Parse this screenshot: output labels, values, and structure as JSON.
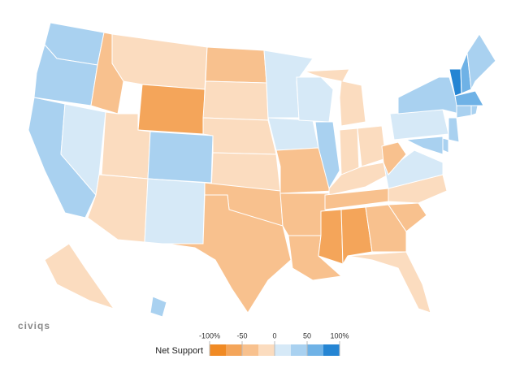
{
  "chart_data": {
    "type": "choropleth",
    "values": [
      40,
      40,
      40,
      15,
      -30,
      -15,
      -60,
      -15,
      -15,
      35,
      15,
      -40,
      -20,
      -20,
      -20,
      -30,
      -40,
      15,
      15,
      -30,
      -40,
      -45,
      15,
      30,
      -15,
      -20,
      -15,
      -20,
      -30,
      -65,
      -65,
      -45,
      -20,
      -45,
      -20,
      15,
      -30,
      15,
      30,
      80,
      50,
      35,
      60,
      40,
      40,
      25,
      25,
      30,
      -15,
      40
    ],
    "legend": {
      "title": "Net Support",
      "lim": [
        -100,
        100
      ],
      "ticks": [
        {
          "value": -100,
          "label": "-100%"
        },
        -50,
        0,
        50,
        {
          "value": 100,
          "label": "100%"
        }
      ],
      "colors": [
        "#f08a24",
        "#f4a55a",
        "#f8c18e",
        "#fbdcbf",
        "#d6e9f7",
        "#a9d1f0",
        "#6fb2e6",
        "#2585d3"
      ]
    },
    "logo": "civiqs"
  }
}
